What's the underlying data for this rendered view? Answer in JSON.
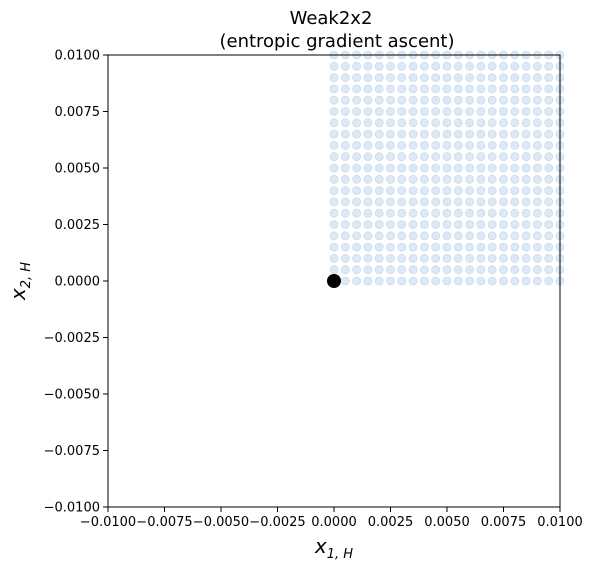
{
  "chart_data": {
    "type": "scatter",
    "title": "Weak2x2",
    "subtitle": "(entropic gradient ascent)",
    "xlabel_base": "x",
    "xlabel_sub": "1, H",
    "ylabel_base": "x",
    "ylabel_sub": "2, H",
    "xlim": [
      -0.01,
      0.01
    ],
    "ylim": [
      -0.01,
      0.01
    ],
    "xticks": [
      -0.01,
      -0.0075,
      -0.005,
      -0.0025,
      0.0,
      0.0025,
      0.005,
      0.0075,
      0.01
    ],
    "yticks": [
      -0.01,
      -0.0075,
      -0.005,
      -0.0025,
      0.0,
      0.0025,
      0.005,
      0.0075,
      0.01
    ],
    "xtick_labels": [
      "−0.0100",
      "−0.0075",
      "−0.0050",
      "−0.0025",
      "0.0000",
      "0.0025",
      "0.0050",
      "0.0075",
      "0.0100"
    ],
    "ytick_labels": [
      "−0.0100",
      "−0.0075",
      "−0.0050",
      "−0.0025",
      "0.0000",
      "0.0025",
      "0.0050",
      "0.0075",
      "0.0100"
    ],
    "grid": false,
    "colors": {
      "start_fill": "#dde9f5",
      "start_edge": "#c6dcee",
      "end_fill": "#000000"
    },
    "series": [
      {
        "marker": "circle-light",
        "grid_points": {
          "x_start": 0.0,
          "x_step": 0.0005,
          "x_count": 21,
          "y_start": 0.0,
          "y_step": 0.0005,
          "y_count": 21,
          "cover_from_x": 0.0005,
          "cover_from_y": 0.0005
        }
      },
      {
        "marker": "circle-large",
        "points": [
          [
            0.0,
            0.0
          ]
        ]
      }
    ]
  }
}
